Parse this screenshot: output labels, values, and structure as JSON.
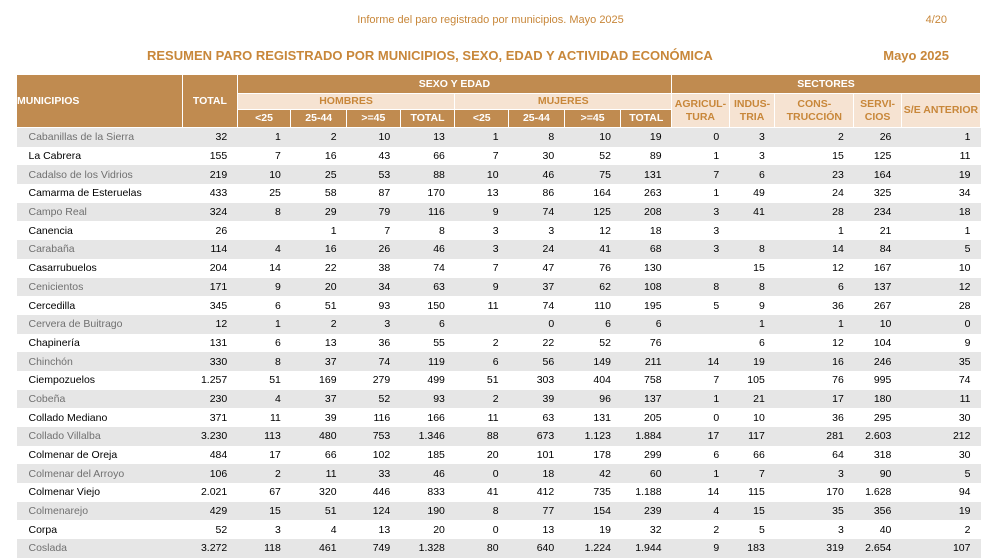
{
  "header": {
    "note": "Informe del paro registrado por municipios. Mayo 2025",
    "page": "4/20",
    "title": "RESUMEN PARO REGISTRADO POR MUNICIPIOS, SEXO, EDAD Y ACTIVIDAD ECONÓMICA",
    "date": "Mayo 2025"
  },
  "columns": {
    "municipios": "MUNICIPIOS",
    "total": "TOTAL",
    "sexo_edad": "SEXO Y EDAD",
    "sectores": "SECTORES",
    "hombres": "HOMBRES",
    "mujeres": "MUJERES",
    "lt25": "<25",
    "a25_44": "25-44",
    "ge45": ">=45",
    "subtotal": "TOTAL",
    "agricultura": "AGRICUL-TURA",
    "industria": "INDUS-TRIA",
    "construccion": "CONS-TRUCCIÓN",
    "servicios": "SERVI-CIOS",
    "sin_empleo": "S/E ANTERIOR"
  },
  "rows": [
    {
      "name": "Cabanillas de la Sierra",
      "v": [
        "32",
        "1",
        "2",
        "10",
        "13",
        "1",
        "8",
        "10",
        "19",
        "0",
        "3",
        "2",
        "26",
        "1"
      ]
    },
    {
      "name": "La Cabrera",
      "v": [
        "155",
        "7",
        "16",
        "43",
        "66",
        "7",
        "30",
        "52",
        "89",
        "1",
        "3",
        "15",
        "125",
        "11"
      ]
    },
    {
      "name": "Cadalso de los Vidrios",
      "v": [
        "219",
        "10",
        "25",
        "53",
        "88",
        "10",
        "46",
        "75",
        "131",
        "7",
        "6",
        "23",
        "164",
        "19"
      ]
    },
    {
      "name": "Camarma de Esteruelas",
      "v": [
        "433",
        "25",
        "58",
        "87",
        "170",
        "13",
        "86",
        "164",
        "263",
        "1",
        "49",
        "24",
        "325",
        "34"
      ]
    },
    {
      "name": "Campo Real",
      "v": [
        "324",
        "8",
        "29",
        "79",
        "116",
        "9",
        "74",
        "125",
        "208",
        "3",
        "41",
        "28",
        "234",
        "18"
      ]
    },
    {
      "name": "Canencia",
      "v": [
        "26",
        "",
        "1",
        "7",
        "8",
        "3",
        "3",
        "12",
        "18",
        "3",
        "",
        "1",
        "21",
        "1"
      ]
    },
    {
      "name": "Carabaña",
      "v": [
        "114",
        "4",
        "16",
        "26",
        "46",
        "3",
        "24",
        "41",
        "68",
        "3",
        "8",
        "14",
        "84",
        "5"
      ]
    },
    {
      "name": "Casarrubuelos",
      "v": [
        "204",
        "14",
        "22",
        "38",
        "74",
        "7",
        "47",
        "76",
        "130",
        "",
        "15",
        "12",
        "167",
        "10"
      ]
    },
    {
      "name": "Cenicientos",
      "v": [
        "171",
        "9",
        "20",
        "34",
        "63",
        "9",
        "37",
        "62",
        "108",
        "8",
        "8",
        "6",
        "137",
        "12"
      ]
    },
    {
      "name": "Cercedilla",
      "v": [
        "345",
        "6",
        "51",
        "93",
        "150",
        "11",
        "74",
        "110",
        "195",
        "5",
        "9",
        "36",
        "267",
        "28"
      ]
    },
    {
      "name": "Cervera de Buitrago",
      "v": [
        "12",
        "1",
        "2",
        "3",
        "6",
        "",
        "0",
        "6",
        "6",
        "",
        "1",
        "1",
        "10",
        "0"
      ]
    },
    {
      "name": "Chapinería",
      "v": [
        "131",
        "6",
        "13",
        "36",
        "55",
        "2",
        "22",
        "52",
        "76",
        "",
        "6",
        "12",
        "104",
        "9"
      ]
    },
    {
      "name": "Chinchón",
      "v": [
        "330",
        "8",
        "37",
        "74",
        "119",
        "6",
        "56",
        "149",
        "211",
        "14",
        "19",
        "16",
        "246",
        "35"
      ]
    },
    {
      "name": "Ciempozuelos",
      "v": [
        "1.257",
        "51",
        "169",
        "279",
        "499",
        "51",
        "303",
        "404",
        "758",
        "7",
        "105",
        "76",
        "995",
        "74"
      ]
    },
    {
      "name": "Cobeña",
      "v": [
        "230",
        "4",
        "37",
        "52",
        "93",
        "2",
        "39",
        "96",
        "137",
        "1",
        "21",
        "17",
        "180",
        "11"
      ]
    },
    {
      "name": "Collado Mediano",
      "v": [
        "371",
        "11",
        "39",
        "116",
        "166",
        "11",
        "63",
        "131",
        "205",
        "0",
        "10",
        "36",
        "295",
        "30"
      ]
    },
    {
      "name": "Collado Villalba",
      "v": [
        "3.230",
        "113",
        "480",
        "753",
        "1.346",
        "88",
        "673",
        "1.123",
        "1.884",
        "17",
        "117",
        "281",
        "2.603",
        "212"
      ]
    },
    {
      "name": "Colmenar de Oreja",
      "v": [
        "484",
        "17",
        "66",
        "102",
        "185",
        "20",
        "101",
        "178",
        "299",
        "6",
        "66",
        "64",
        "318",
        "30"
      ]
    },
    {
      "name": "Colmenar del Arroyo",
      "v": [
        "106",
        "2",
        "11",
        "33",
        "46",
        "0",
        "18",
        "42",
        "60",
        "1",
        "7",
        "3",
        "90",
        "5"
      ]
    },
    {
      "name": "Colmenar Viejo",
      "v": [
        "2.021",
        "67",
        "320",
        "446",
        "833",
        "41",
        "412",
        "735",
        "1.188",
        "14",
        "115",
        "170",
        "1.628",
        "94"
      ]
    },
    {
      "name": "Colmenarejo",
      "v": [
        "429",
        "15",
        "51",
        "124",
        "190",
        "8",
        "77",
        "154",
        "239",
        "4",
        "15",
        "35",
        "356",
        "19"
      ]
    },
    {
      "name": "Corpa",
      "v": [
        "52",
        "3",
        "4",
        "13",
        "20",
        "0",
        "13",
        "19",
        "32",
        "2",
        "5",
        "3",
        "40",
        "2"
      ]
    },
    {
      "name": "Coslada",
      "v": [
        "3.272",
        "118",
        "461",
        "749",
        "1.328",
        "80",
        "640",
        "1.224",
        "1.944",
        "9",
        "183",
        "319",
        "2.654",
        "107"
      ]
    }
  ]
}
